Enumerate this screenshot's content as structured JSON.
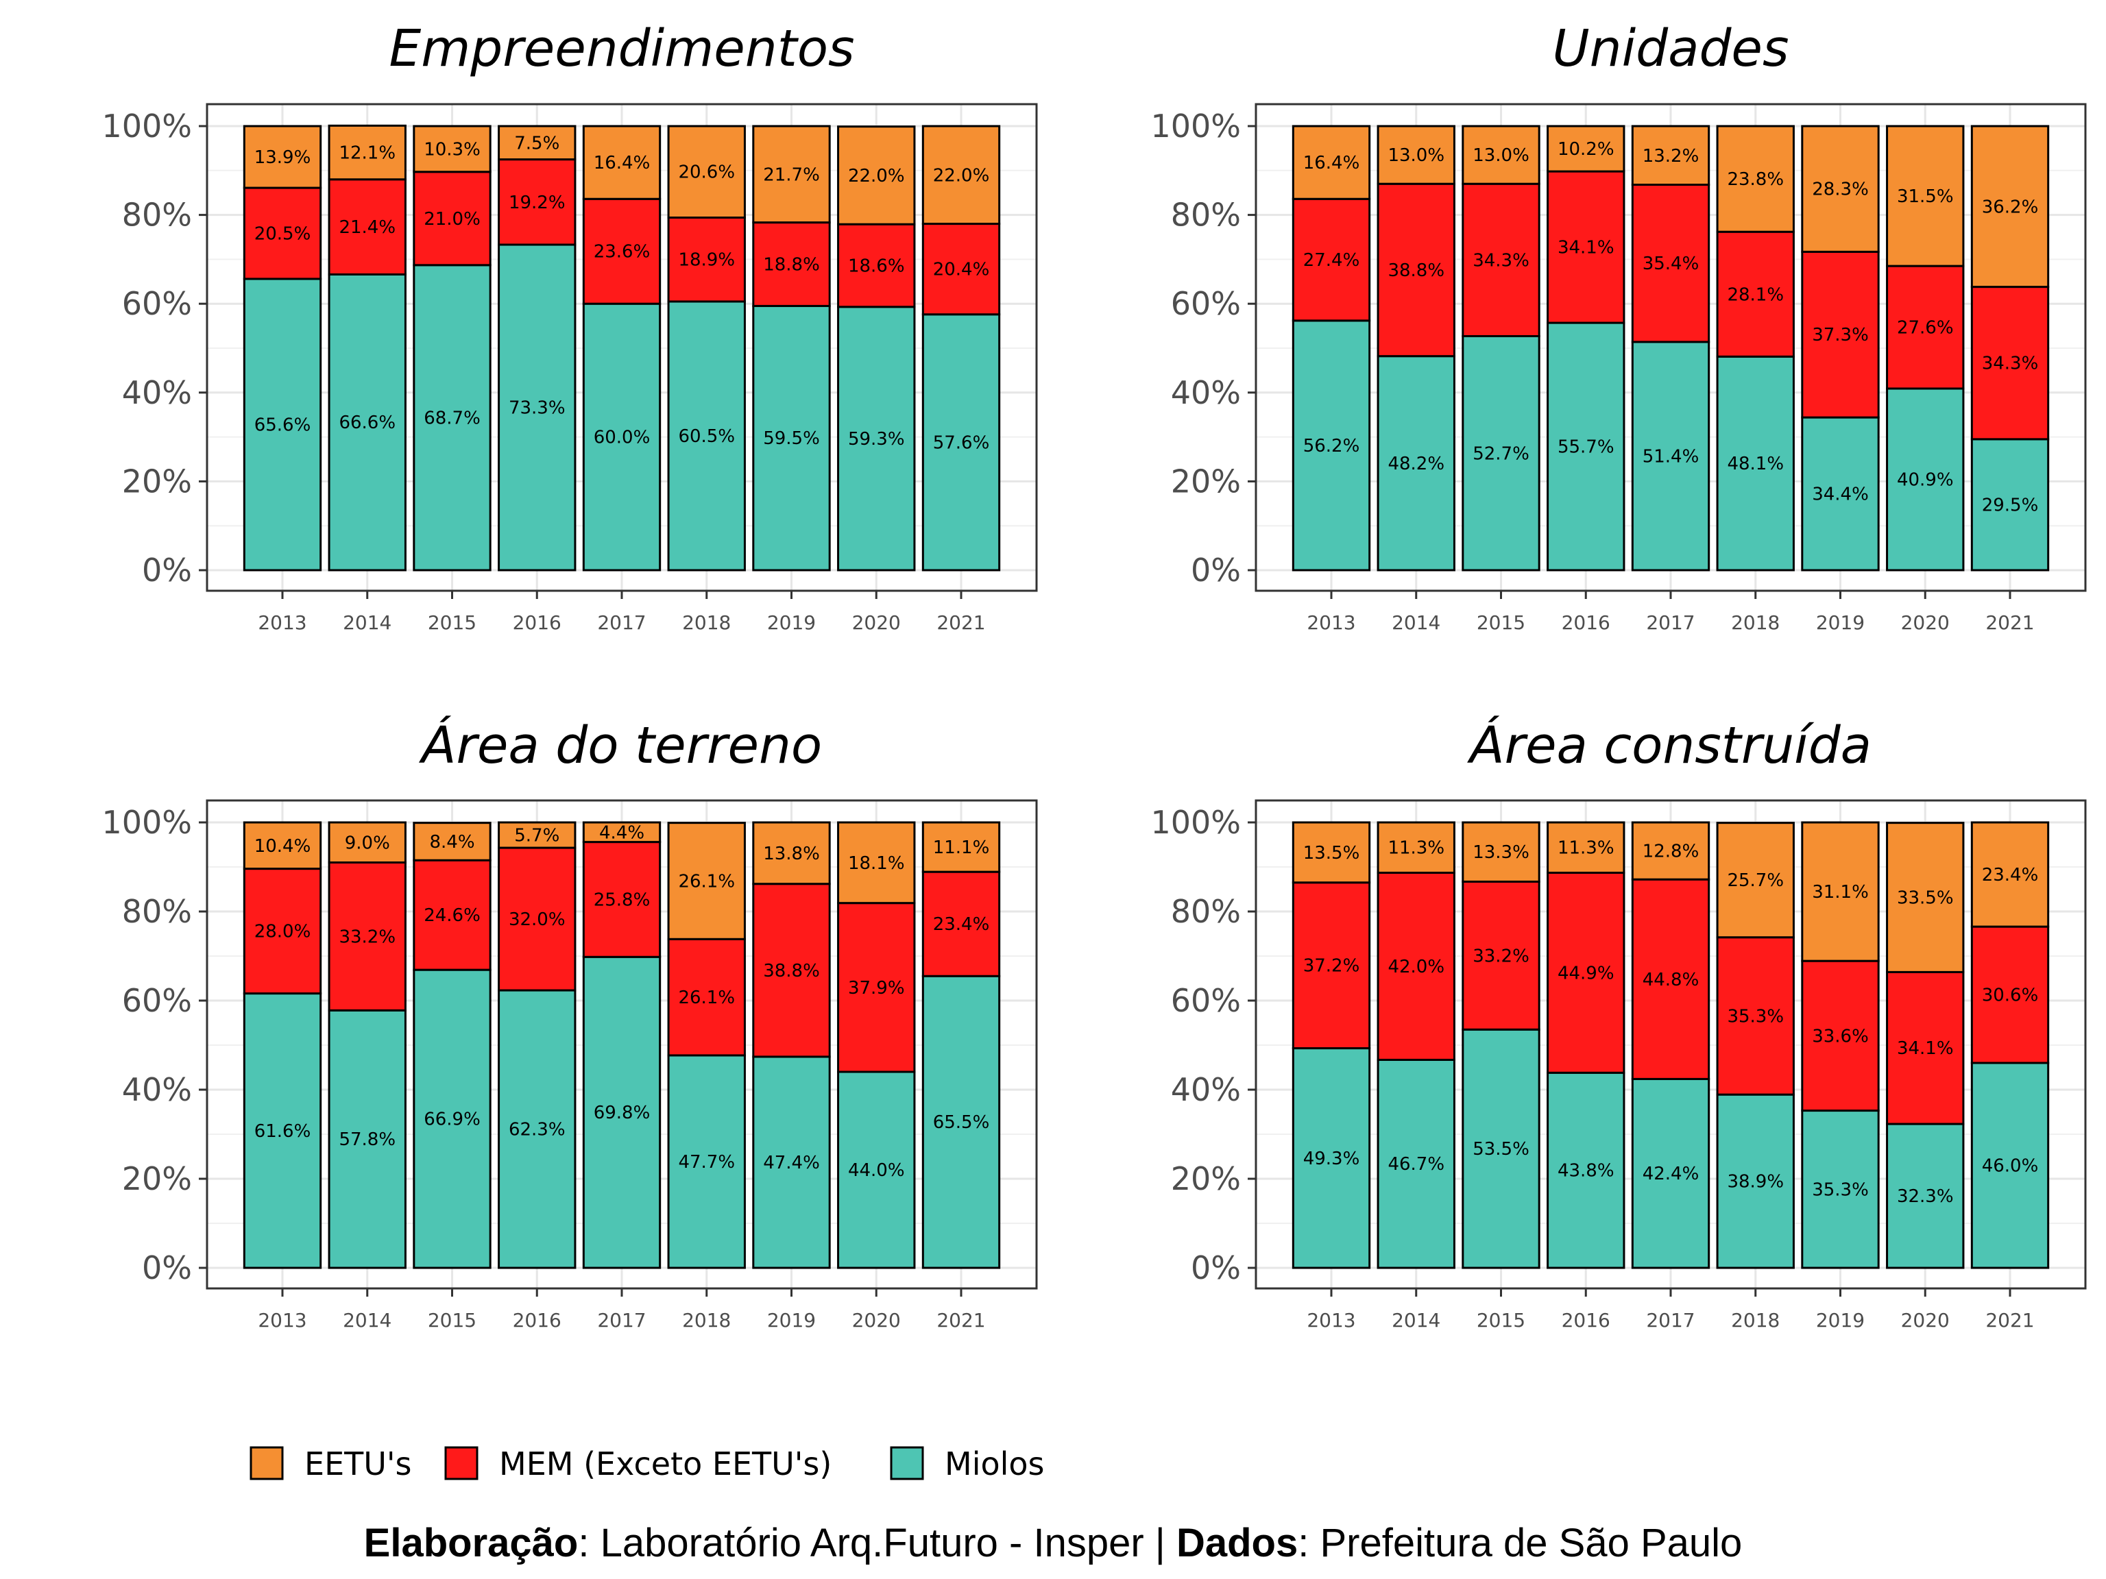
{
  "colors": {
    "EETU's": "#F58F32",
    "MEM (Exceto EETU's)": "#FF1A1A",
    "Miolos": "#4EC5B3"
  },
  "legend": {
    "items": [
      "EETU's",
      "MEM (Exceto EETU's)",
      "Miolos"
    ],
    "placement": "bottom-left"
  },
  "caption": {
    "elab_label": "Elaboração",
    "elab_text": ": Laboratório Arq.Futuro - Insper | ",
    "dados_label": "Dados",
    "dados_text": ": Prefeitura de São Paulo"
  },
  "chart_data": [
    {
      "type": "bar",
      "stacked": true,
      "title": "Empreendimentos",
      "categories": [
        "2013",
        "2014",
        "2015",
        "2016",
        "2017",
        "2018",
        "2019",
        "2020",
        "2021"
      ],
      "ylim": [
        0,
        100
      ],
      "yticks": [
        "0%",
        "20%",
        "40%",
        "60%",
        "80%",
        "100%"
      ],
      "grid": true,
      "series": [
        {
          "name": "Miolos",
          "values": [
            65.6,
            66.6,
            68.7,
            73.3,
            60.0,
            60.5,
            59.5,
            59.3,
            57.6
          ],
          "labels": [
            "65.6%",
            "66.6%",
            "68.7%",
            "73.3%",
            "60.0%",
            "60.5%",
            "59.5%",
            "59.3%",
            "57.6%"
          ]
        },
        {
          "name": "MEM (Exceto EETU's)",
          "values": [
            20.5,
            21.4,
            21.0,
            19.2,
            23.6,
            18.9,
            18.8,
            18.6,
            20.4
          ],
          "labels": [
            "20.5%",
            "21.4%",
            "21.0%",
            "19.2%",
            "23.6%",
            "18.9%",
            "18.8%",
            "18.6%",
            "20.4%"
          ]
        },
        {
          "name": "EETU's",
          "values": [
            13.9,
            12.1,
            10.3,
            7.5,
            16.4,
            20.6,
            21.7,
            22.0,
            22.0
          ],
          "labels": [
            "13.9%",
            "12.1%",
            "10.3%",
            "7.5%",
            "16.4%",
            "20.6%",
            "21.7%",
            "22.0%",
            "22.0%"
          ]
        }
      ]
    },
    {
      "type": "bar",
      "stacked": true,
      "title": "Unidades",
      "categories": [
        "2013",
        "2014",
        "2015",
        "2016",
        "2017",
        "2018",
        "2019",
        "2020",
        "2021"
      ],
      "ylim": [
        0,
        100
      ],
      "yticks": [
        "0%",
        "20%",
        "40%",
        "60%",
        "80%",
        "100%"
      ],
      "grid": true,
      "series": [
        {
          "name": "Miolos",
          "values": [
            56.2,
            48.2,
            52.7,
            55.7,
            51.4,
            48.1,
            34.4,
            40.9,
            29.5
          ],
          "labels": [
            "56.2%",
            "48.2%",
            "52.7%",
            "55.7%",
            "51.4%",
            "48.1%",
            "34.4%",
            "40.9%",
            "29.5%"
          ]
        },
        {
          "name": "MEM (Exceto EETU's)",
          "values": [
            27.4,
            38.8,
            34.3,
            34.1,
            35.4,
            28.1,
            37.3,
            27.6,
            34.3
          ],
          "labels": [
            "27.4%",
            "38.8%",
            "34.3%",
            "34.1%",
            "35.4%",
            "28.1%",
            "37.3%",
            "27.6%",
            "34.3%"
          ]
        },
        {
          "name": "EETU's",
          "values": [
            16.4,
            13.0,
            13.0,
            10.2,
            13.2,
            23.8,
            28.3,
            31.5,
            36.2
          ],
          "labels": [
            "16.4%",
            "13.0%",
            "13.0%",
            "10.2%",
            "13.2%",
            "23.8%",
            "28.3%",
            "31.5%",
            "36.2%"
          ]
        }
      ]
    },
    {
      "type": "bar",
      "stacked": true,
      "title": "Área do terreno",
      "categories": [
        "2013",
        "2014",
        "2015",
        "2016",
        "2017",
        "2018",
        "2019",
        "2020",
        "2021"
      ],
      "ylim": [
        0,
        100
      ],
      "yticks": [
        "0%",
        "20%",
        "40%",
        "60%",
        "80%",
        "100%"
      ],
      "grid": true,
      "series": [
        {
          "name": "Miolos",
          "values": [
            61.6,
            57.8,
            66.9,
            62.3,
            69.8,
            47.7,
            47.4,
            44.0,
            65.5
          ],
          "labels": [
            "61.6%",
            "57.8%",
            "66.9%",
            "62.3%",
            "69.8%",
            "47.7%",
            "47.4%",
            "44.0%",
            "65.5%"
          ]
        },
        {
          "name": "MEM (Exceto EETU's)",
          "values": [
            28.0,
            33.2,
            24.6,
            32.0,
            25.8,
            26.1,
            38.8,
            37.9,
            23.4
          ],
          "labels": [
            "28.0%",
            "33.2%",
            "24.6%",
            "32.0%",
            "25.8%",
            "26.1%",
            "38.8%",
            "37.9%",
            "23.4%"
          ]
        },
        {
          "name": "EETU's",
          "values": [
            10.4,
            9.0,
            8.4,
            5.7,
            4.4,
            26.1,
            13.8,
            18.1,
            11.1
          ],
          "labels": [
            "10.4%",
            "9.0%",
            "8.4%",
            "5.7%",
            "4.4%",
            "26.1%",
            "13.8%",
            "18.1%",
            "11.1%"
          ]
        }
      ]
    },
    {
      "type": "bar",
      "stacked": true,
      "title": "Área construída",
      "categories": [
        "2013",
        "2014",
        "2015",
        "2016",
        "2017",
        "2018",
        "2019",
        "2020",
        "2021"
      ],
      "ylim": [
        0,
        100
      ],
      "yticks": [
        "0%",
        "20%",
        "40%",
        "60%",
        "80%",
        "100%"
      ],
      "grid": true,
      "series": [
        {
          "name": "Miolos",
          "values": [
            49.3,
            46.7,
            53.5,
            43.8,
            42.4,
            38.9,
            35.3,
            32.3,
            46.0
          ],
          "labels": [
            "49.3%",
            "46.7%",
            "53.5%",
            "43.8%",
            "42.4%",
            "38.9%",
            "35.3%",
            "32.3%",
            "46.0%"
          ]
        },
        {
          "name": "MEM (Exceto EETU's)",
          "values": [
            37.2,
            42.0,
            33.2,
            44.9,
            44.8,
            35.3,
            33.6,
            34.1,
            30.6
          ],
          "labels": [
            "37.2%",
            "42.0%",
            "33.2%",
            "44.9%",
            "44.8%",
            "35.3%",
            "33.6%",
            "34.1%",
            "30.6%"
          ]
        },
        {
          "name": "EETU's",
          "values": [
            13.5,
            11.3,
            13.3,
            11.3,
            12.8,
            25.7,
            31.1,
            33.5,
            23.4
          ],
          "labels": [
            "13.5%",
            "11.3%",
            "13.3%",
            "11.3%",
            "12.8%",
            "25.7%",
            "31.1%",
            "33.5%",
            "23.4%"
          ]
        }
      ]
    }
  ]
}
